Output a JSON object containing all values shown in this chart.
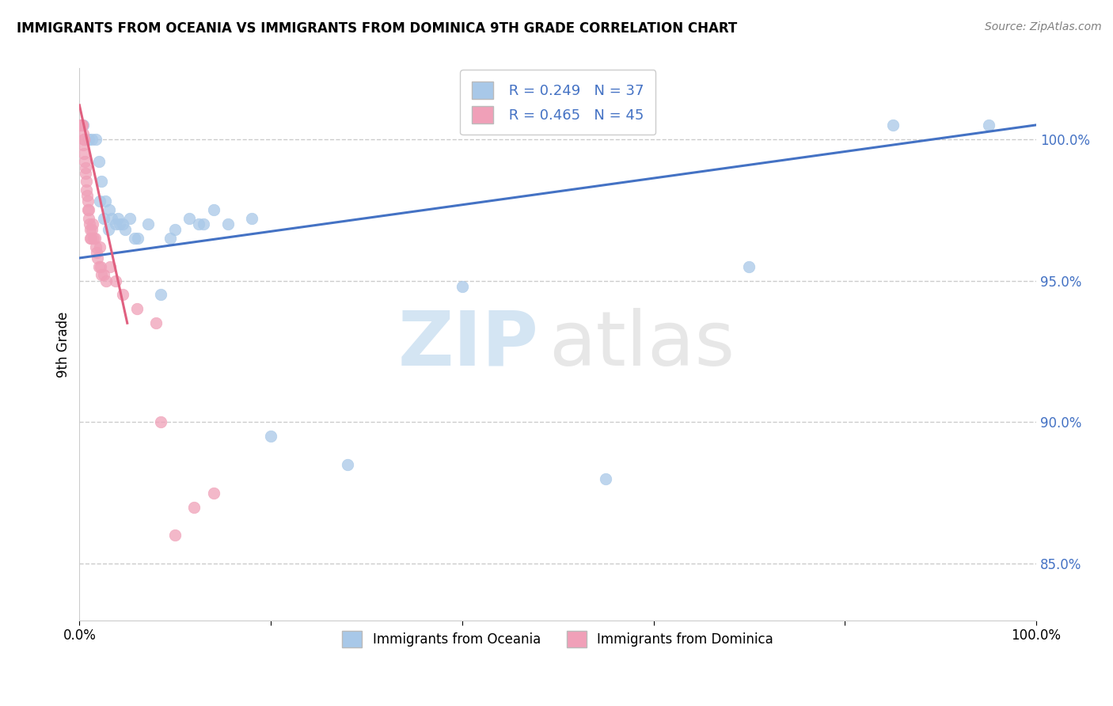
{
  "title": "IMMIGRANTS FROM OCEANIA VS IMMIGRANTS FROM DOMINICA 9TH GRADE CORRELATION CHART",
  "source": "Source: ZipAtlas.com",
  "ylabel": "9th Grade",
  "xlim": [
    0.0,
    100.0
  ],
  "ylim": [
    83.0,
    102.5
  ],
  "yticks": [
    85.0,
    90.0,
    95.0,
    100.0
  ],
  "ytick_labels": [
    "85.0%",
    "90.0%",
    "95.0%",
    "100.0%"
  ],
  "r_oceania": 0.249,
  "n_oceania": 37,
  "r_dominica": 0.465,
  "n_dominica": 45,
  "color_oceania": "#A8C8E8",
  "color_dominica": "#F0A0B8",
  "trendline_oceania_color": "#4472C4",
  "trendline_dominica_color": "#E06080",
  "watermark_zip": "ZIP",
  "watermark_atlas": "atlas",
  "background_color": "#FFFFFF",
  "oceania_x": [
    0.4,
    1.0,
    1.3,
    1.7,
    2.0,
    2.3,
    2.7,
    3.1,
    3.4,
    3.8,
    4.2,
    4.8,
    5.3,
    6.1,
    7.2,
    8.5,
    10.0,
    11.5,
    13.0,
    15.5,
    18.0,
    28.0,
    85.0,
    95.0,
    2.1,
    2.5,
    3.0,
    4.0,
    4.5,
    5.8,
    9.5,
    12.5,
    14.0,
    20.0,
    40.0,
    55.0,
    70.0
  ],
  "oceania_y": [
    100.5,
    100.0,
    100.0,
    100.0,
    99.2,
    98.5,
    97.8,
    97.5,
    97.2,
    97.0,
    97.0,
    96.8,
    97.2,
    96.5,
    97.0,
    94.5,
    96.8,
    97.2,
    97.0,
    97.0,
    97.2,
    88.5,
    100.5,
    100.5,
    97.8,
    97.2,
    96.8,
    97.2,
    97.0,
    96.5,
    96.5,
    97.0,
    97.5,
    89.5,
    94.8,
    88.0,
    95.5
  ],
  "dominica_x": [
    0.15,
    0.2,
    0.25,
    0.3,
    0.35,
    0.4,
    0.45,
    0.5,
    0.5,
    0.55,
    0.6,
    0.65,
    0.7,
    0.75,
    0.8,
    0.85,
    0.9,
    0.95,
    1.0,
    1.05,
    1.1,
    1.15,
    1.2,
    1.3,
    1.4,
    1.5,
    1.6,
    1.7,
    1.8,
    1.9,
    2.0,
    2.1,
    2.2,
    2.3,
    2.5,
    2.8,
    3.2,
    3.8,
    4.5,
    6.0,
    8.0,
    10.0,
    12.0,
    14.0,
    8.5
  ],
  "dominica_y": [
    100.5,
    100.5,
    100.5,
    100.5,
    100.2,
    99.8,
    100.0,
    99.5,
    100.0,
    99.2,
    99.0,
    98.8,
    98.5,
    98.2,
    98.0,
    97.8,
    97.5,
    97.2,
    97.5,
    97.0,
    96.8,
    96.5,
    96.5,
    96.8,
    97.0,
    96.5,
    96.5,
    96.2,
    96.0,
    95.8,
    95.5,
    96.2,
    95.5,
    95.2,
    95.2,
    95.0,
    95.5,
    95.0,
    94.5,
    94.0,
    93.5,
    86.0,
    87.0,
    87.5,
    90.0
  ],
  "trendline_oceania_x0": 0.0,
  "trendline_oceania_y0": 95.8,
  "trendline_oceania_x1": 100.0,
  "trendline_oceania_y1": 100.5,
  "trendline_dominica_x0": 0.0,
  "trendline_dominica_y0": 101.2,
  "trendline_dominica_x1": 5.0,
  "trendline_dominica_y1": 93.5
}
